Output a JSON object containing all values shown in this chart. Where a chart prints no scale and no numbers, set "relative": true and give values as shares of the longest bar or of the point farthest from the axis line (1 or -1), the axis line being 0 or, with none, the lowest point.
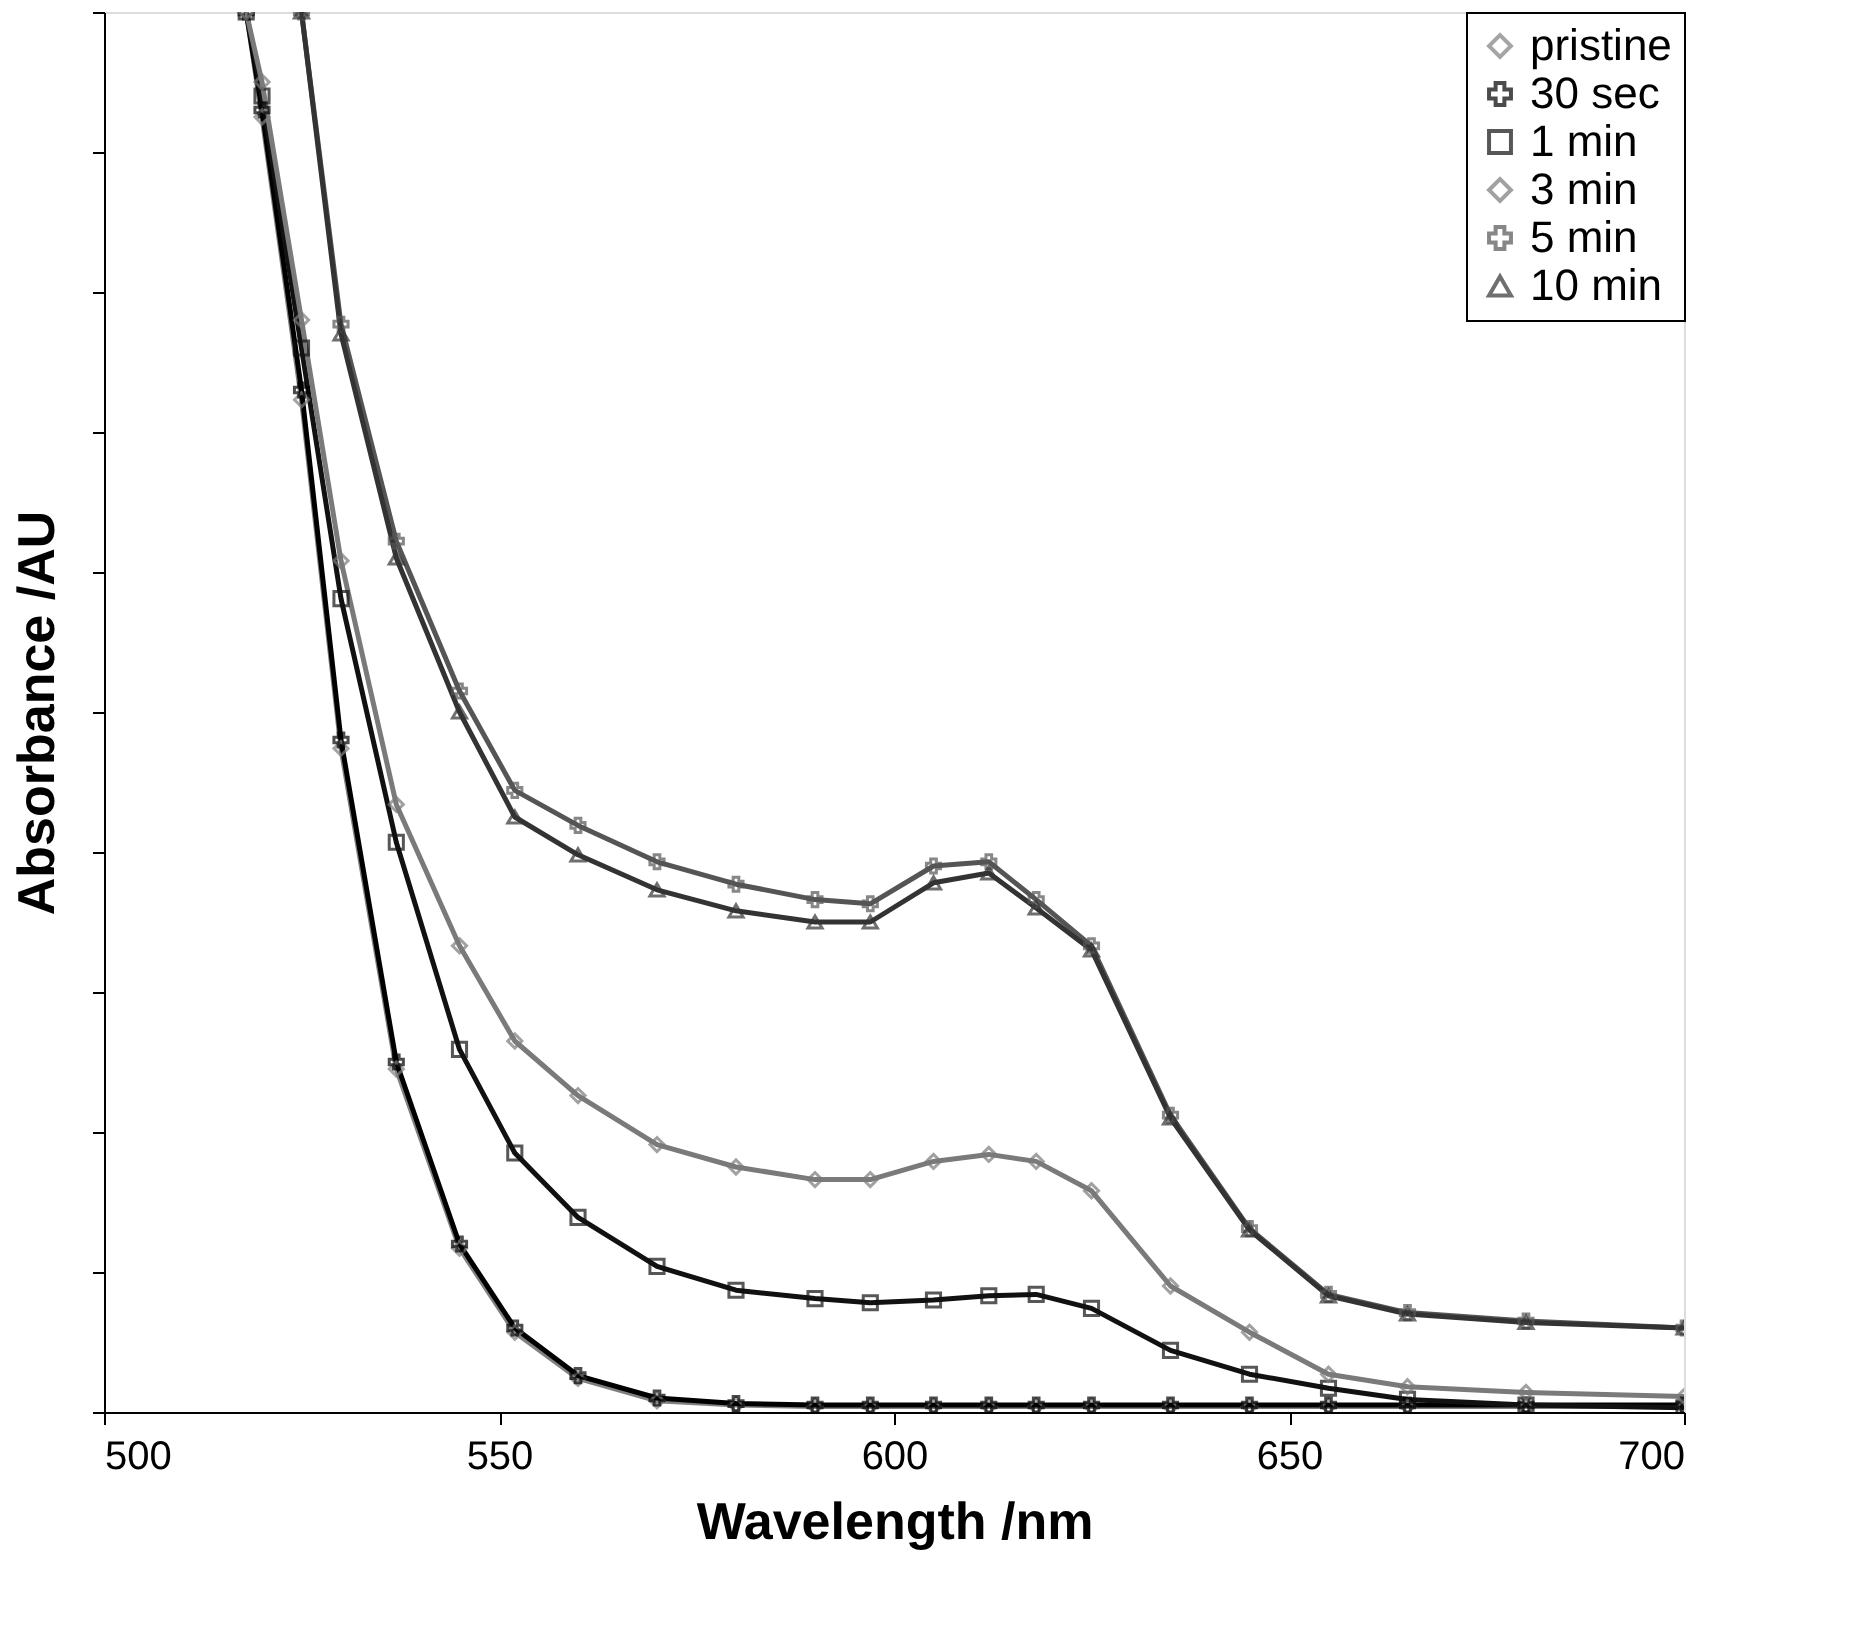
{
  "chart_data": {
    "type": "line",
    "relative": true,
    "xlabel": "Wavelength /nm",
    "ylabel": "Absorbance /AU",
    "x": [
      518,
      520,
      525,
      530,
      537,
      545,
      552,
      560,
      570,
      580,
      590,
      597,
      605,
      612,
      618,
      625,
      635,
      645,
      655,
      665,
      680,
      700
    ],
    "xlim": [
      500,
      700
    ],
    "xticks": [
      500,
      550,
      600,
      650,
      700
    ],
    "legend": "top right",
    "grid": false,
    "series": [
      {
        "name": "pristine",
        "color": "#808080",
        "marker": "diamond",
        "values": [
          1,
          0.925,
          0.723,
          0.474,
          0.245,
          0.117,
          0.057,
          0.024,
          0.008,
          0.005,
          0.004,
          0.004,
          0.004,
          0.004,
          0.004,
          0.004,
          0.004,
          0.004,
          0.004,
          0.004,
          0.004,
          0.004
        ]
      },
      {
        "name": "30 sec",
        "color": "#000000",
        "marker": "cross",
        "values": [
          1,
          0.93,
          0.73,
          0.48,
          0.25,
          0.12,
          0.06,
          0.026,
          0.01,
          0.006,
          0.005,
          0.005,
          0.005,
          0.005,
          0.005,
          0.005,
          0.005,
          0.005,
          0.005,
          0.005,
          0.005,
          0.005
        ]
      },
      {
        "name": "1 min",
        "color": "#111111",
        "marker": "square",
        "values": [
          1,
          0.94,
          0.76,
          0.581,
          0.407,
          0.259,
          0.185,
          0.139,
          0.104,
          0.087,
          0.081,
          0.078,
          0.08,
          0.083,
          0.084,
          0.074,
          0.044,
          0.027,
          0.017,
          0.009,
          0.005,
          0.003
        ]
      },
      {
        "name": "3 min",
        "color": "#7a7a7a",
        "marker": "diamond",
        "values": [
          1,
          0.95,
          0.78,
          0.608,
          0.434,
          0.333,
          0.265,
          0.226,
          0.191,
          0.175,
          0.166,
          0.166,
          0.179,
          0.184,
          0.179,
          0.158,
          0.09,
          0.057,
          0.027,
          0.018,
          0.014,
          0.011
        ]
      },
      {
        "name": "5 min",
        "color": "#555555",
        "marker": "cross",
        "values": [
          null,
          null,
          1,
          0.777,
          0.622,
          0.515,
          0.444,
          0.419,
          0.393,
          0.377,
          0.366,
          0.363,
          0.39,
          0.393,
          0.366,
          0.333,
          0.212,
          0.131,
          0.084,
          0.071,
          0.065,
          0.06
        ]
      },
      {
        "name": "10 min",
        "color": "#333333",
        "marker": "triangle",
        "values": [
          null,
          null,
          1,
          0.77,
          0.61,
          0.5,
          0.425,
          0.398,
          0.373,
          0.358,
          0.35,
          0.35,
          0.378,
          0.385,
          0.36,
          0.33,
          0.21,
          0.13,
          0.083,
          0.07,
          0.064,
          0.06
        ]
      }
    ]
  }
}
